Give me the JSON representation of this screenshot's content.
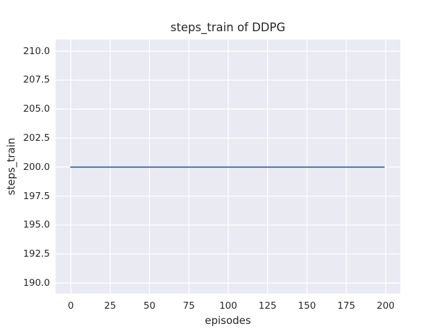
{
  "figure": {
    "background": "#ffffff",
    "text_color": "#262626"
  },
  "chart_data": {
    "type": "line",
    "title": "steps_train of DDPG",
    "xlabel": "episodes",
    "ylabel": "steps_train",
    "x_ticks": [
      0,
      25,
      50,
      75,
      100,
      125,
      150,
      175,
      200
    ],
    "x_tick_labels": [
      "0",
      "25",
      "50",
      "75",
      "100",
      "125",
      "150",
      "175",
      "200"
    ],
    "y_ticks": [
      210.0,
      207.5,
      205.0,
      202.5,
      200.0,
      197.5,
      195.0,
      192.5,
      190.0
    ],
    "y_tick_labels": [
      "210.0",
      "207.5",
      "205.0",
      "202.5",
      "200.0",
      "197.5",
      "195.0",
      "192.5",
      "190.0"
    ],
    "xlim": [
      -9.7,
      209.3
    ],
    "ylim": [
      189.1,
      211.0
    ],
    "grid": true,
    "legend": false,
    "plot_bg_color": "#EAEAF2",
    "grid_color": "#FFFFFF",
    "series": [
      {
        "name": "steps_train",
        "color": "#4C72B0",
        "x": [
          0,
          199
        ],
        "y": [
          200,
          200
        ]
      }
    ]
  }
}
